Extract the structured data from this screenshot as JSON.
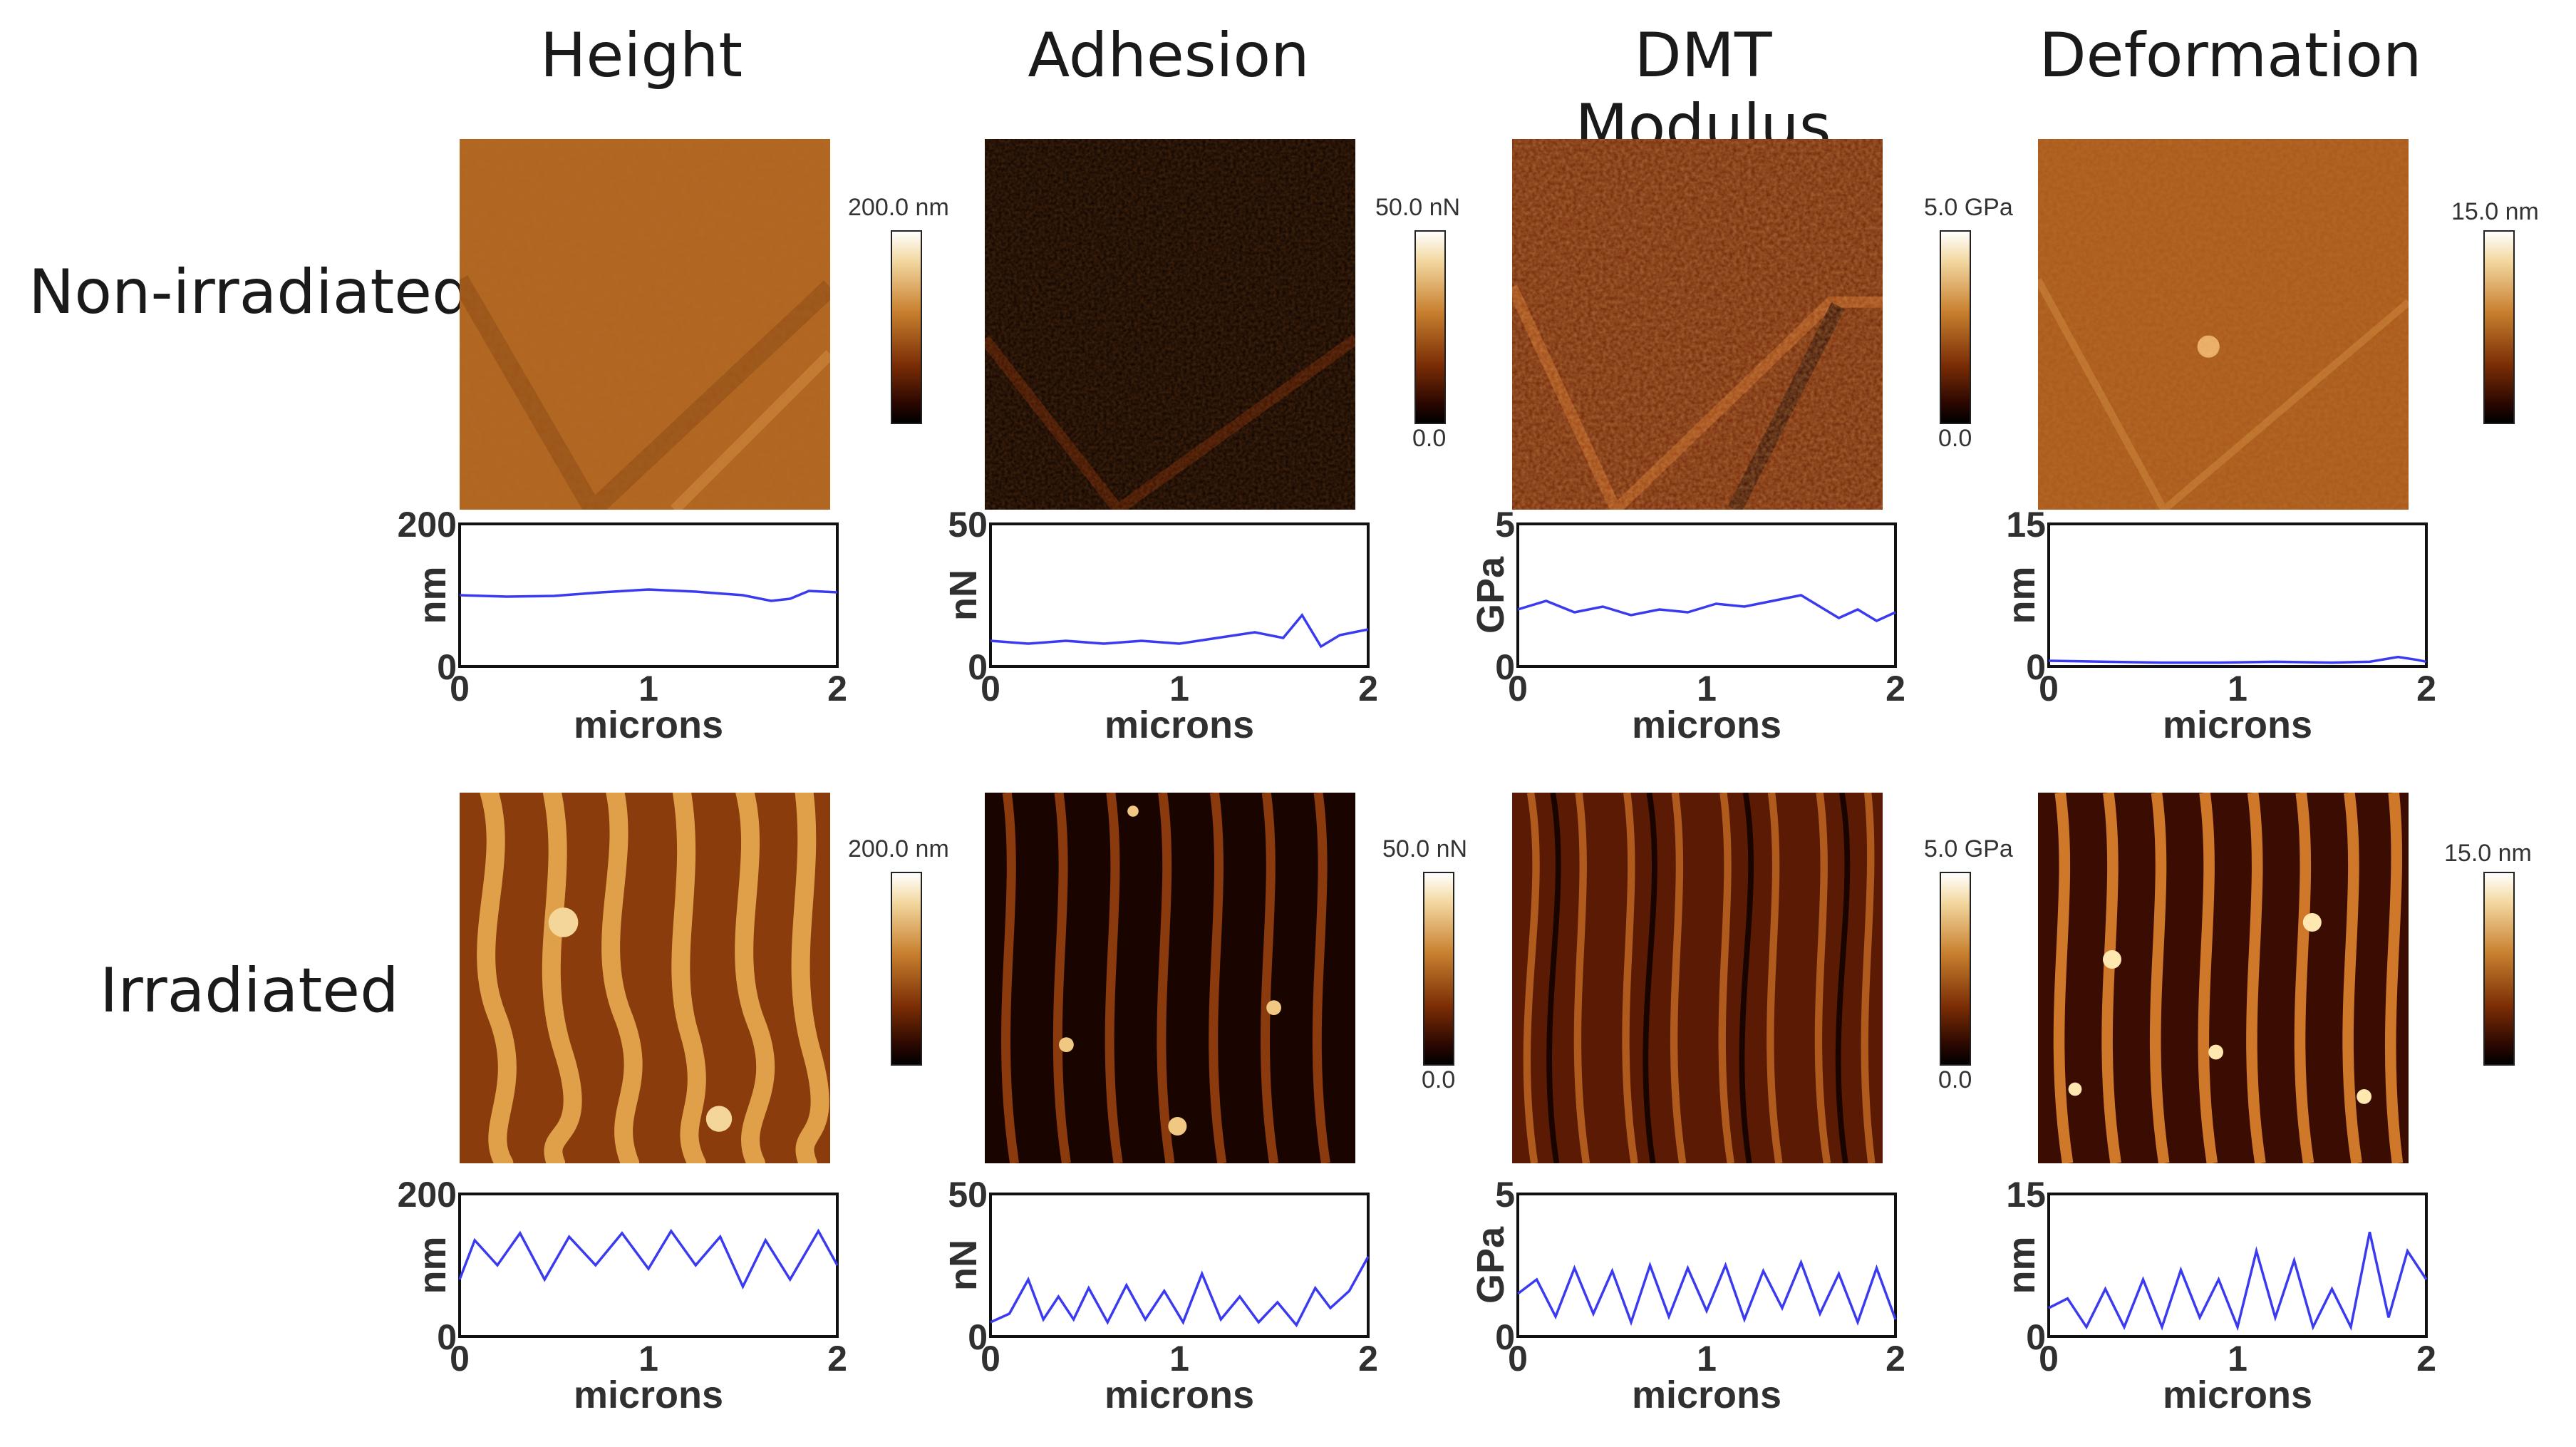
{
  "columns": [
    "Height",
    "Adhesion",
    "DMT Modulus",
    "Deformation"
  ],
  "rows": [
    "Non-irradiated",
    "Irradiated"
  ],
  "colorbars": [
    {
      "max": "200.0 nm",
      "min": ""
    },
    {
      "max": "50.0 nN",
      "min": "0.0"
    },
    {
      "max": "5.0 GPa",
      "min": "0.0"
    },
    {
      "max": "15.0 nm",
      "min": ""
    }
  ],
  "colors": {
    "profile_line": "#3a3af0",
    "afm_dark": "#1a0400",
    "afm_mid": "#a8561b",
    "afm_light": "#f8e6b8"
  },
  "chart_data": [
    {
      "type": "line",
      "row": "Non-irradiated",
      "column": "Height",
      "xlabel": "microns",
      "ylabel": "nm",
      "xlim": [
        0,
        2
      ],
      "ylim": [
        0,
        200
      ],
      "xticks": [
        "0",
        "1",
        "2"
      ],
      "yticks": [
        "0",
        "200"
      ],
      "x": [
        0,
        0.25,
        0.5,
        0.75,
        1.0,
        1.25,
        1.5,
        1.65,
        1.75,
        1.85,
        2.0
      ],
      "y": [
        100,
        98,
        99,
        104,
        108,
        105,
        100,
        92,
        95,
        106,
        104
      ]
    },
    {
      "type": "line",
      "row": "Non-irradiated",
      "column": "Adhesion",
      "xlabel": "microns",
      "ylabel": "nN",
      "xlim": [
        0,
        2
      ],
      "ylim": [
        0,
        50
      ],
      "xticks": [
        "0",
        "1",
        "2"
      ],
      "yticks": [
        "0",
        "50"
      ],
      "x": [
        0,
        0.2,
        0.4,
        0.6,
        0.8,
        1.0,
        1.2,
        1.4,
        1.55,
        1.65,
        1.75,
        1.85,
        2.0
      ],
      "y": [
        9,
        8,
        9,
        8,
        9,
        8,
        10,
        12,
        10,
        18,
        7,
        11,
        13
      ]
    },
    {
      "type": "line",
      "row": "Non-irradiated",
      "column": "DMT Modulus",
      "xlabel": "microns",
      "ylabel": "GPa",
      "xlim": [
        0,
        2
      ],
      "ylim": [
        0,
        5
      ],
      "xticks": [
        "0",
        "1",
        "2"
      ],
      "yticks": [
        "0",
        "5"
      ],
      "x": [
        0,
        0.15,
        0.3,
        0.45,
        0.6,
        0.75,
        0.9,
        1.05,
        1.2,
        1.35,
        1.5,
        1.6,
        1.7,
        1.8,
        1.9,
        2.0
      ],
      "y": [
        2.0,
        2.3,
        1.9,
        2.1,
        1.8,
        2.0,
        1.9,
        2.2,
        2.1,
        2.3,
        2.5,
        2.1,
        1.7,
        2.0,
        1.6,
        1.9
      ]
    },
    {
      "type": "line",
      "row": "Non-irradiated",
      "column": "Deformation",
      "xlabel": "microns",
      "ylabel": "nm",
      "xlim": [
        0,
        2
      ],
      "ylim": [
        0,
        15
      ],
      "xticks": [
        "0",
        "1",
        "2"
      ],
      "yticks": [
        "0",
        "15"
      ],
      "x": [
        0,
        0.3,
        0.6,
        0.9,
        1.2,
        1.5,
        1.7,
        1.85,
        1.95,
        2.0
      ],
      "y": [
        0.6,
        0.5,
        0.4,
        0.4,
        0.5,
        0.4,
        0.5,
        1.0,
        0.7,
        0.5
      ]
    },
    {
      "type": "line",
      "row": "Irradiated",
      "column": "Height",
      "xlabel": "microns",
      "ylabel": "nm",
      "xlim": [
        0,
        2
      ],
      "ylim": [
        0,
        200
      ],
      "xticks": [
        "0",
        "1",
        "2"
      ],
      "yticks": [
        "0",
        "200"
      ],
      "x": [
        0,
        0.08,
        0.2,
        0.32,
        0.45,
        0.58,
        0.72,
        0.86,
        1.0,
        1.12,
        1.25,
        1.38,
        1.5,
        1.62,
        1.75,
        1.9,
        2.0
      ],
      "y": [
        80,
        135,
        100,
        145,
        80,
        140,
        100,
        145,
        95,
        148,
        100,
        140,
        70,
        135,
        80,
        148,
        100
      ]
    },
    {
      "type": "line",
      "row": "Irradiated",
      "column": "Adhesion",
      "xlabel": "microns",
      "ylabel": "nN",
      "xlim": [
        0,
        2
      ],
      "ylim": [
        0,
        50
      ],
      "xticks": [
        "0",
        "1",
        "2"
      ],
      "yticks": [
        "0",
        "50"
      ],
      "x": [
        0,
        0.1,
        0.2,
        0.28,
        0.36,
        0.44,
        0.52,
        0.62,
        0.72,
        0.82,
        0.92,
        1.02,
        1.12,
        1.22,
        1.32,
        1.42,
        1.52,
        1.62,
        1.72,
        1.8,
        1.9,
        2.0
      ],
      "y": [
        5,
        8,
        20,
        6,
        14,
        6,
        17,
        5,
        18,
        6,
        16,
        5,
        22,
        6,
        14,
        5,
        12,
        4,
        17,
        10,
        16,
        28
      ]
    },
    {
      "type": "line",
      "row": "Irradiated",
      "column": "DMT Modulus",
      "xlabel": "microns",
      "ylabel": "GPa",
      "xlim": [
        0,
        2
      ],
      "ylim": [
        0,
        5
      ],
      "xticks": [
        "0",
        "1",
        "2"
      ],
      "yticks": [
        "0",
        "5"
      ],
      "x": [
        0,
        0.1,
        0.2,
        0.3,
        0.4,
        0.5,
        0.6,
        0.7,
        0.8,
        0.9,
        1.0,
        1.1,
        1.2,
        1.3,
        1.4,
        1.5,
        1.6,
        1.7,
        1.8,
        1.9,
        2.0
      ],
      "y": [
        1.5,
        2.0,
        0.7,
        2.4,
        0.8,
        2.3,
        0.5,
        2.5,
        0.7,
        2.4,
        0.9,
        2.5,
        0.6,
        2.3,
        1.0,
        2.6,
        0.8,
        2.2,
        0.5,
        2.4,
        0.6
      ]
    },
    {
      "type": "line",
      "row": "Irradiated",
      "column": "Deformation",
      "xlabel": "microns",
      "ylabel": "nm",
      "xlim": [
        0,
        2
      ],
      "ylim": [
        0,
        15
      ],
      "xticks": [
        "0",
        "1",
        "2"
      ],
      "yticks": [
        "0",
        "15"
      ],
      "x": [
        0,
        0.1,
        0.2,
        0.3,
        0.4,
        0.5,
        0.6,
        0.7,
        0.8,
        0.9,
        1.0,
        1.1,
        1.2,
        1.3,
        1.4,
        1.5,
        1.6,
        1.7,
        1.8,
        1.9,
        2.0
      ],
      "y": [
        3,
        4,
        1,
        5,
        1,
        6,
        1,
        7,
        2,
        6,
        1,
        9,
        2,
        8,
        1,
        5,
        1,
        11,
        2,
        9,
        6
      ]
    }
  ]
}
